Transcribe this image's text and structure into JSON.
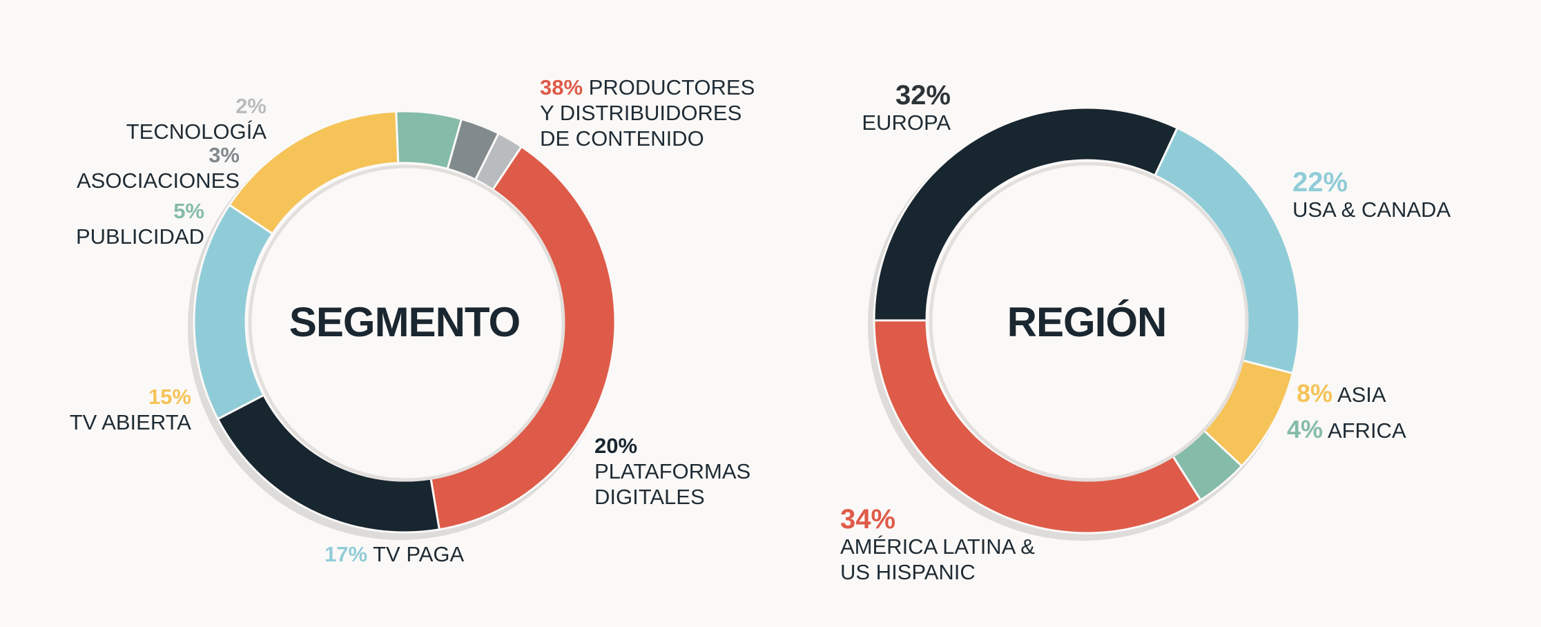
{
  "colors": {
    "red": "#de5b49",
    "dark": "#182630",
    "lightblue": "#90ccd8",
    "yellow": "#f5c357",
    "green": "#85bba9",
    "gray": "#818a8d",
    "lightgray": "#b9bcbf"
  },
  "chart_data": [
    {
      "type": "pie",
      "title": "SEGMENTO",
      "series": [
        {
          "name": "PRODUCTORES Y DISTRIBUIDORES DE CONTENIDO",
          "value": 38,
          "pct_label": "38%",
          "label_lines": [
            "PRODUCTORES",
            "Y DISTRIBUIDORES",
            "DE CONTENIDO"
          ],
          "color": "red"
        },
        {
          "name": "PLATAFORMAS DIGITALES",
          "value": 20,
          "pct_label": "20%",
          "label_lines": [
            "PLATAFORMAS",
            "DIGITALES"
          ],
          "color": "dark"
        },
        {
          "name": "TV PAGA",
          "value": 17,
          "pct_label": "17%",
          "label_lines": [
            "TV PAGA"
          ],
          "color": "lightblue"
        },
        {
          "name": "TV ABIERTA",
          "value": 15,
          "pct_label": "15%",
          "label_lines": [
            "TV ABIERTA"
          ],
          "color": "yellow"
        },
        {
          "name": "PUBLICIDAD",
          "value": 5,
          "pct_label": "5%",
          "label_lines": [
            "PUBLICIDAD"
          ],
          "color": "green"
        },
        {
          "name": "ASOCIACIONES",
          "value": 3,
          "pct_label": "3%",
          "label_lines": [
            "ASOCIACIONES"
          ],
          "color": "gray"
        },
        {
          "name": "TECNOLOGÍA",
          "value": 2,
          "pct_label": "2%",
          "label_lines": [
            "TECNOLOGÍA"
          ],
          "color": "lightgray"
        }
      ]
    },
    {
      "type": "pie",
      "title": "REGIÓN",
      "series": [
        {
          "name": "USA & CANADA",
          "value": 22,
          "pct_label": "22%",
          "label_lines": [
            "USA & CANADA"
          ],
          "color": "lightblue"
        },
        {
          "name": "ASIA",
          "value": 8,
          "pct_label": "8%",
          "label_lines": [
            "ASIA"
          ],
          "color": "yellow"
        },
        {
          "name": "AFRICA",
          "value": 4,
          "pct_label": "4%",
          "label_lines": [
            "AFRICA"
          ],
          "color": "green"
        },
        {
          "name": "AMÉRICA LATINA & US HISPANIC",
          "value": 34,
          "pct_label": "34%",
          "label_lines": [
            "AMÉRICA LATINA &",
            "US HISPANIC"
          ],
          "color": "red"
        },
        {
          "name": "EUROPA",
          "value": 32,
          "pct_label": "32%",
          "label_lines": [
            "EUROPA"
          ],
          "color": "dark"
        }
      ]
    }
  ]
}
